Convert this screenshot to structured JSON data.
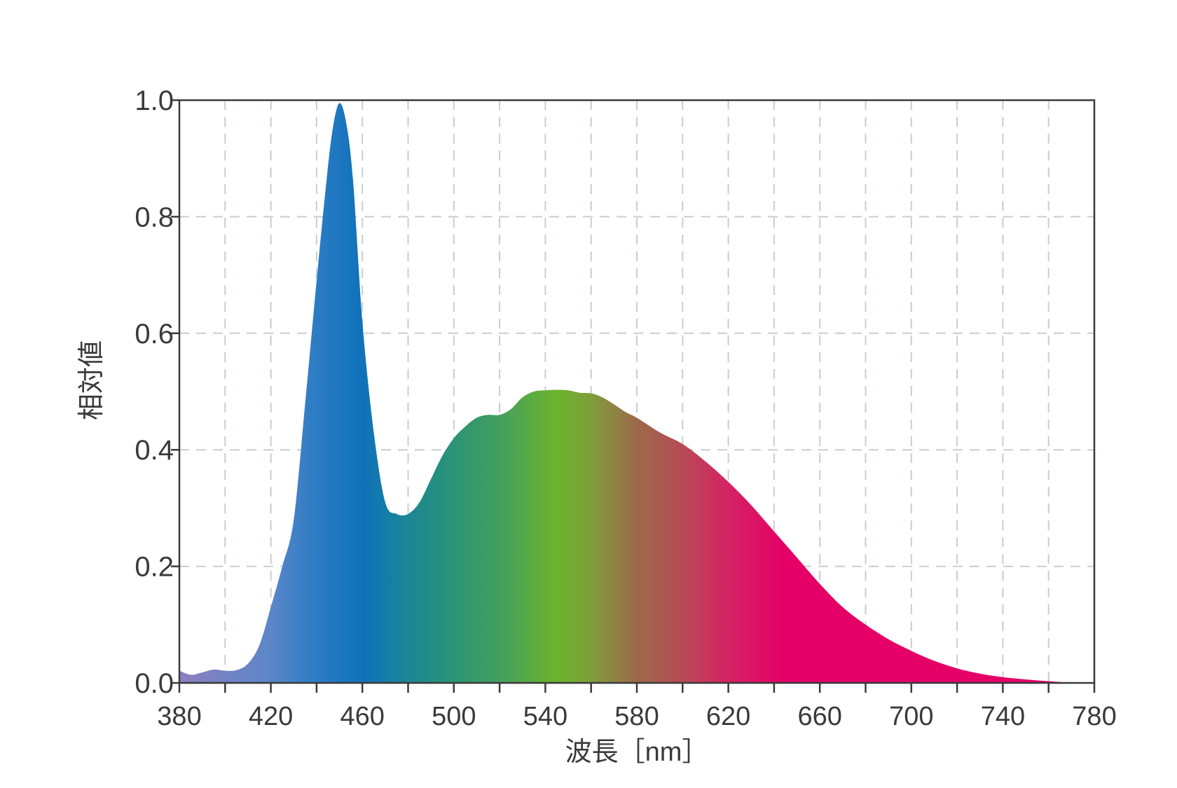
{
  "chart_data": {
    "type": "area",
    "title": "",
    "xlabel": "波長［nm］",
    "ylabel": "相対値",
    "xlim": [
      380,
      780
    ],
    "ylim": [
      0,
      1.0
    ],
    "x_ticks": [
      380,
      420,
      460,
      500,
      540,
      580,
      620,
      660,
      700,
      740,
      780
    ],
    "x_tick_labels": [
      "380",
      "420",
      "460",
      "500",
      "540",
      "580",
      "620",
      "660",
      "700",
      "740",
      "780"
    ],
    "y_ticks": [
      0.0,
      0.2,
      0.4,
      0.6,
      0.8,
      1.0
    ],
    "y_tick_labels": [
      "0.0",
      "0.2",
      "0.4",
      "0.6",
      "0.8",
      "1.0"
    ],
    "grid": true,
    "legend": "none",
    "series": [
      {
        "x": [
          380,
          385,
          390,
          395,
          400,
          405,
          410,
          415,
          420,
          425,
          430,
          435,
          440,
          444,
          447,
          450,
          453,
          456,
          460,
          465,
          470,
          475,
          480,
          485,
          490,
          495,
          500,
          505,
          510,
          515,
          520,
          525,
          530,
          535,
          540,
          545,
          550,
          555,
          560,
          565,
          570,
          575,
          580,
          590,
          600,
          610,
          620,
          630,
          640,
          650,
          660,
          670,
          680,
          690,
          700,
          710,
          720,
          730,
          740,
          750,
          760,
          770,
          780
        ],
        "y": [
          0.021,
          0.014,
          0.018,
          0.023,
          0.021,
          0.022,
          0.033,
          0.065,
          0.13,
          0.2,
          0.28,
          0.48,
          0.69,
          0.85,
          0.95,
          0.995,
          0.96,
          0.86,
          0.62,
          0.43,
          0.31,
          0.29,
          0.29,
          0.31,
          0.35,
          0.39,
          0.42,
          0.44,
          0.455,
          0.46,
          0.46,
          0.47,
          0.49,
          0.5,
          0.502,
          0.503,
          0.502,
          0.498,
          0.497,
          0.49,
          0.478,
          0.465,
          0.455,
          0.43,
          0.41,
          0.38,
          0.345,
          0.305,
          0.26,
          0.215,
          0.17,
          0.13,
          0.1,
          0.075,
          0.055,
          0.038,
          0.025,
          0.016,
          0.01,
          0.006,
          0.003,
          0.0005,
          0.0
        ]
      }
    ],
    "colors": {
      "axis": "#3a3a3a",
      "grid": "#c8cdd2",
      "spectrum_stops": [
        {
          "wl": 380,
          "color": "#8c7fbf"
        },
        {
          "wl": 420,
          "color": "#5b86c8"
        },
        {
          "wl": 440,
          "color": "#2b7cc4"
        },
        {
          "wl": 460,
          "color": "#0f72ba"
        },
        {
          "wl": 480,
          "color": "#1b8696"
        },
        {
          "wl": 500,
          "color": "#2b9475"
        },
        {
          "wl": 520,
          "color": "#449f5e"
        },
        {
          "wl": 545,
          "color": "#6cb42c"
        },
        {
          "wl": 560,
          "color": "#7f9e3a"
        },
        {
          "wl": 580,
          "color": "#9b6a4a"
        },
        {
          "wl": 600,
          "color": "#b84a55"
        },
        {
          "wl": 620,
          "color": "#d42363"
        },
        {
          "wl": 645,
          "color": "#e40066"
        },
        {
          "wl": 780,
          "color": "#e50068"
        }
      ]
    }
  }
}
